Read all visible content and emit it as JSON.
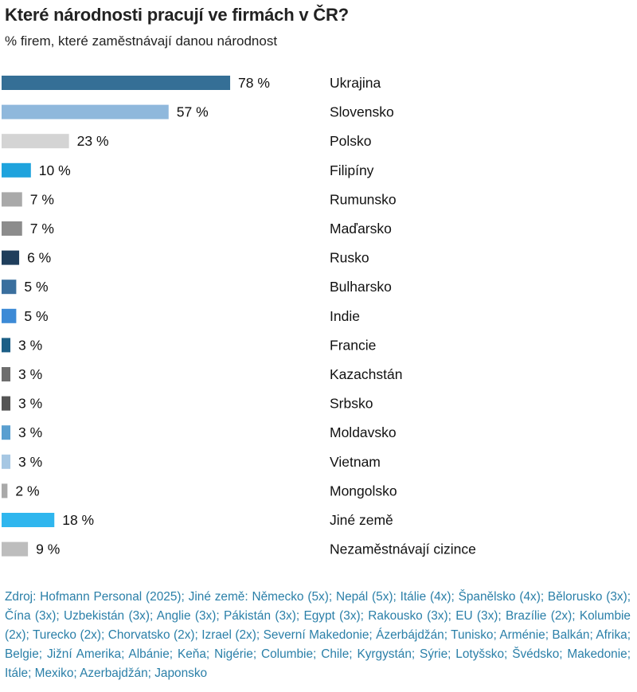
{
  "title": "Které národnosti pracují ve firmách v ČR?",
  "subtitle": "% firem, které zaměstnávají danou národnost",
  "chart_data": {
    "type": "bar",
    "orientation": "horizontal",
    "categories": [
      "Ukrajina",
      "Slovensko",
      "Polsko",
      "Filipíny",
      "Rumunsko",
      "Maďarsko",
      "Rusko",
      "Bulharsko",
      "Indie",
      "Francie",
      "Kazachstán",
      "Srbsko",
      "Moldavsko",
      "Vietnam",
      "Mongolsko",
      "Jiné země",
      "Nezaměstnávají cizince"
    ],
    "values": [
      78,
      57,
      23,
      10,
      7,
      7,
      6,
      5,
      5,
      3,
      3,
      3,
      3,
      3,
      2,
      18,
      9
    ],
    "value_labels": [
      "78 %",
      "57 %",
      "23 %",
      "10 %",
      "7 %",
      "7 %",
      "6 %",
      "5 %",
      "5 %",
      "3 %",
      "3 %",
      "3 %",
      "3 %",
      "3 %",
      "2 %",
      "18 %",
      "9 %"
    ],
    "colors": [
      "#356f96",
      "#8fb8dc",
      "#d4d4d4",
      "#1fa3dd",
      "#a9a9a9",
      "#8c8c8c",
      "#1f3e5c",
      "#3a6f9e",
      "#3c8ad6",
      "#1c5f86",
      "#6e6e6e",
      "#555555",
      "#5a9fd0",
      "#a6c7e3",
      "#a9a9a9",
      "#2fb6ee",
      "#bdbdbd"
    ],
    "legend": "none",
    "grid": false
  },
  "source": "Zdroj: Hofmann Personal (2025); Jiné země: Německo (5x); Nepál (5x); Itálie (4x); Španělsko (4x); Bělorusko (3x); Čína (3x); Uzbekistán (3x); Anglie (3x); Pákistán (3x); Egypt (3x); Rakousko (3x); EU (3x); Brazílie (2x); Kolumbie (2x); Turecko (2x); Chorvatsko (2x); Izrael (2x); Severní Makedonie; Ázerbájdžán; Tunisko; Arménie; Balkán; Afrika; Belgie; Jižní Amerika; Albánie; Keňa; Nigérie; Columbie; Chile; Kyrgystán; Sýrie; Lotyšsko; Švédsko; Makedonie; Itále; Mexiko; Azerbajdžán; Japonsko"
}
